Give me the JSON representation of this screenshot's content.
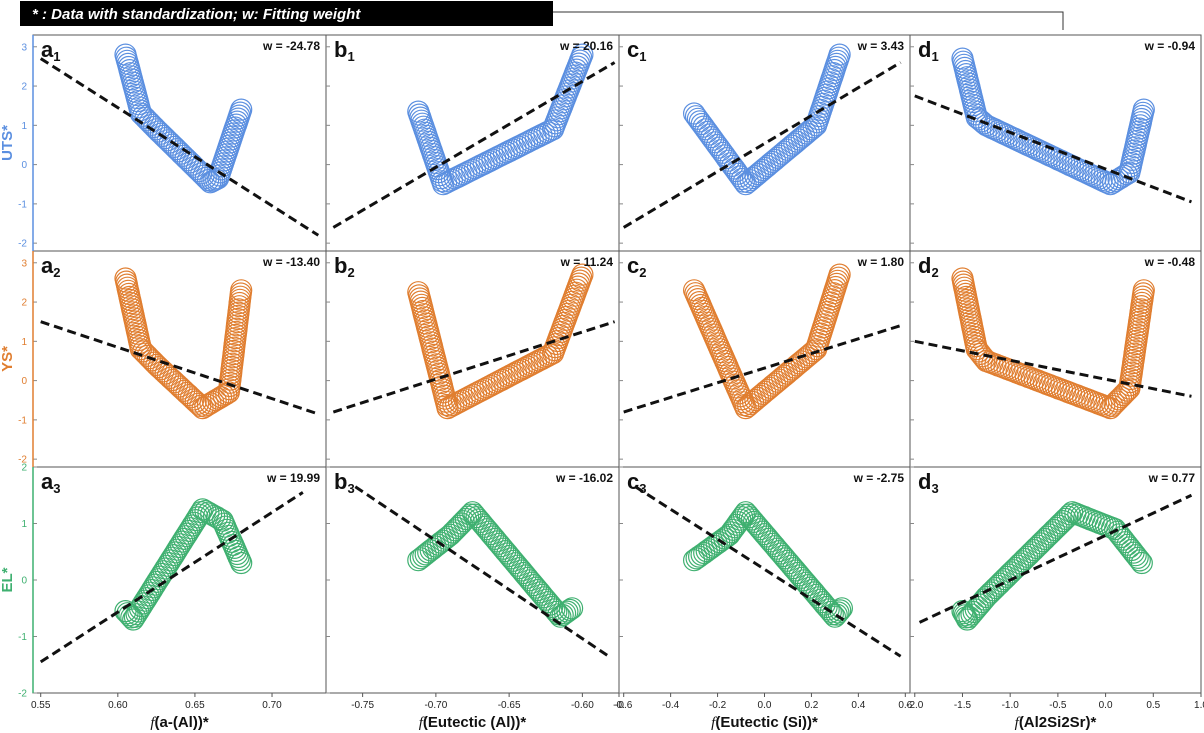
{
  "legend": "* : Data with standardization;   w: Fitting weight",
  "colors": {
    "UTS": "#5b8fe0",
    "YS": "#e07e30",
    "EL": "#3fb070"
  },
  "chart_data": {
    "type": "scatter",
    "rows": [
      {
        "ylabel": "UTS*",
        "color_key": "UTS",
        "ylim": [
          -2.2,
          3.3
        ],
        "yticks": [
          -2,
          -1,
          0,
          1,
          2,
          3
        ]
      },
      {
        "ylabel": "YS*",
        "color_key": "YS",
        "ylim": [
          -2.2,
          3.3
        ],
        "yticks": [
          -2,
          -1,
          0,
          1,
          2,
          3
        ]
      },
      {
        "ylabel": "EL*",
        "color_key": "EL",
        "ylim": [
          -2.0,
          2.0
        ],
        "yticks": [
          -2,
          -1,
          0,
          1,
          2
        ]
      }
    ],
    "columns": [
      {
        "xlabel_prefix": "f",
        "xlabel": "(a-(Al))*",
        "xlim": [
          0.545,
          0.735
        ],
        "xticks": [
          0.55,
          0.6,
          0.65,
          0.7
        ],
        "xtick_labels": [
          "0.55",
          "0.60",
          "0.65",
          "0.70"
        ]
      },
      {
        "xlabel_prefix": "f",
        "xlabel": "(Eutectic (Al))*",
        "xlim": [
          -0.775,
          -0.575
        ],
        "xticks": [
          -0.75,
          -0.7,
          -0.65,
          -0.6,
          -0.575
        ],
        "xtick_labels": [
          "-0.75",
          "-0.70",
          "-0.65",
          "-0.60",
          "-0."
        ]
      },
      {
        "xlabel_prefix": "f",
        "xlabel": "(Eutectic (Si))*",
        "xlim": [
          -0.62,
          0.62
        ],
        "xticks": [
          -0.6,
          -0.4,
          -0.2,
          0.0,
          0.2,
          0.4,
          0.6
        ],
        "xtick_labels": [
          "-0.6",
          "-0.4",
          "-0.2",
          "0.0",
          "0.2",
          "0.4",
          "0.6"
        ]
      },
      {
        "xlabel_prefix": "f",
        "xlabel": "(Al2Si2Sr)*",
        "xlim": [
          -2.05,
          1.0
        ],
        "xticks": [
          -2.0,
          -1.5,
          -1.0,
          -0.5,
          0.0,
          0.5,
          1.0
        ],
        "xtick_labels": [
          "-2.0",
          "-1.5",
          "-1.0",
          "-0.5",
          "0.0",
          "0.5",
          "1.0"
        ]
      }
    ],
    "panels": [
      {
        "row": 0,
        "col": 0,
        "label": "a",
        "sub": "1",
        "weight": "w = -24.78",
        "fit": [
          [
            0.55,
            2.7
          ],
          [
            0.73,
            -1.8
          ]
        ],
        "path": [
          [
            0.605,
            2.8
          ],
          [
            0.615,
            1.3
          ],
          [
            0.625,
            0.9
          ],
          [
            0.66,
            -0.45
          ],
          [
            0.665,
            -0.35
          ],
          [
            0.68,
            1.4
          ]
        ]
      },
      {
        "row": 0,
        "col": 1,
        "label": "b",
        "sub": "1",
        "weight": "w = 20.16",
        "fit": [
          [
            -0.77,
            -1.6
          ],
          [
            -0.578,
            2.6
          ]
        ],
        "path": [
          [
            -0.712,
            1.35
          ],
          [
            -0.695,
            -0.5
          ],
          [
            -0.62,
            0.9
          ],
          [
            -0.6,
            2.8
          ]
        ]
      },
      {
        "row": 0,
        "col": 2,
        "label": "c",
        "sub": "1",
        "weight": "w = 3.43",
        "fit": [
          [
            -0.6,
            -1.6
          ],
          [
            0.58,
            2.6
          ]
        ],
        "path": [
          [
            -0.3,
            1.3
          ],
          [
            -0.08,
            -0.5
          ],
          [
            0.22,
            1.0
          ],
          [
            0.32,
            2.8
          ]
        ]
      },
      {
        "row": 0,
        "col": 3,
        "label": "d",
        "sub": "1",
        "weight": "w = -0.94",
        "fit": [
          [
            -2.0,
            1.75
          ],
          [
            0.9,
            -0.95
          ]
        ],
        "path": [
          [
            -1.5,
            2.7
          ],
          [
            -1.35,
            1.2
          ],
          [
            -1.25,
            1.0
          ],
          [
            0.05,
            -0.5
          ],
          [
            0.25,
            -0.2
          ],
          [
            0.4,
            1.4
          ]
        ]
      },
      {
        "row": 1,
        "col": 0,
        "label": "a",
        "sub": "2",
        "weight": "w = -13.40",
        "fit": [
          [
            0.55,
            1.5
          ],
          [
            0.73,
            -0.85
          ]
        ],
        "path": [
          [
            0.605,
            2.6
          ],
          [
            0.615,
            0.8
          ],
          [
            0.625,
            0.4
          ],
          [
            0.655,
            -0.7
          ],
          [
            0.672,
            -0.3
          ],
          [
            0.68,
            2.3
          ]
        ]
      },
      {
        "row": 1,
        "col": 1,
        "label": "b",
        "sub": "2",
        "weight": "w = 11.24",
        "fit": [
          [
            -0.77,
            -0.8
          ],
          [
            -0.578,
            1.5
          ]
        ],
        "path": [
          [
            -0.712,
            2.25
          ],
          [
            -0.692,
            -0.7
          ],
          [
            -0.62,
            0.7
          ],
          [
            -0.6,
            2.7
          ]
        ]
      },
      {
        "row": 1,
        "col": 2,
        "label": "c",
        "sub": "2",
        "weight": "w = 1.80",
        "fit": [
          [
            -0.6,
            -0.8
          ],
          [
            0.58,
            1.4
          ]
        ],
        "path": [
          [
            -0.3,
            2.3
          ],
          [
            -0.08,
            -0.7
          ],
          [
            0.22,
            0.8
          ],
          [
            0.32,
            2.7
          ]
        ]
      },
      {
        "row": 1,
        "col": 3,
        "label": "d",
        "sub": "2",
        "weight": "w = -0.48",
        "fit": [
          [
            -2.0,
            1.0
          ],
          [
            0.9,
            -0.4
          ]
        ],
        "path": [
          [
            -1.5,
            2.6
          ],
          [
            -1.35,
            0.8
          ],
          [
            -1.25,
            0.5
          ],
          [
            0.05,
            -0.7
          ],
          [
            0.25,
            -0.2
          ],
          [
            0.4,
            2.3
          ]
        ]
      },
      {
        "row": 2,
        "col": 0,
        "label": "a",
        "sub": "3",
        "weight": "w = 19.99",
        "fit": [
          [
            0.55,
            -1.45
          ],
          [
            0.72,
            1.55
          ]
        ],
        "path": [
          [
            0.605,
            -0.55
          ],
          [
            0.61,
            -0.7
          ],
          [
            0.655,
            1.25
          ],
          [
            0.668,
            1.05
          ],
          [
            0.68,
            0.3
          ]
        ]
      },
      {
        "row": 2,
        "col": 1,
        "label": "b",
        "sub": "3",
        "weight": "w = -16.02",
        "fit": [
          [
            -0.755,
            1.65
          ],
          [
            -0.582,
            -1.35
          ]
        ],
        "path": [
          [
            -0.712,
            0.35
          ],
          [
            -0.69,
            0.8
          ],
          [
            -0.675,
            1.2
          ],
          [
            -0.615,
            -0.65
          ],
          [
            -0.607,
            -0.5
          ]
        ]
      },
      {
        "row": 2,
        "col": 2,
        "label": "c",
        "sub": "3",
        "weight": "w = -2.75",
        "fit": [
          [
            -0.55,
            1.65
          ],
          [
            0.58,
            -1.35
          ]
        ],
        "path": [
          [
            -0.3,
            0.35
          ],
          [
            -0.15,
            0.8
          ],
          [
            -0.08,
            1.2
          ],
          [
            0.3,
            -0.65
          ],
          [
            0.33,
            -0.5
          ]
        ]
      },
      {
        "row": 2,
        "col": 3,
        "label": "d",
        "sub": "3",
        "weight": "w = 0.77",
        "fit": [
          [
            -1.95,
            -0.75
          ],
          [
            0.9,
            1.5
          ]
        ],
        "path": [
          [
            -1.5,
            -0.55
          ],
          [
            -1.45,
            -0.7
          ],
          [
            -1.25,
            -0.3
          ],
          [
            -0.35,
            1.2
          ],
          [
            0.1,
            0.9
          ],
          [
            0.38,
            0.3
          ]
        ]
      }
    ]
  }
}
